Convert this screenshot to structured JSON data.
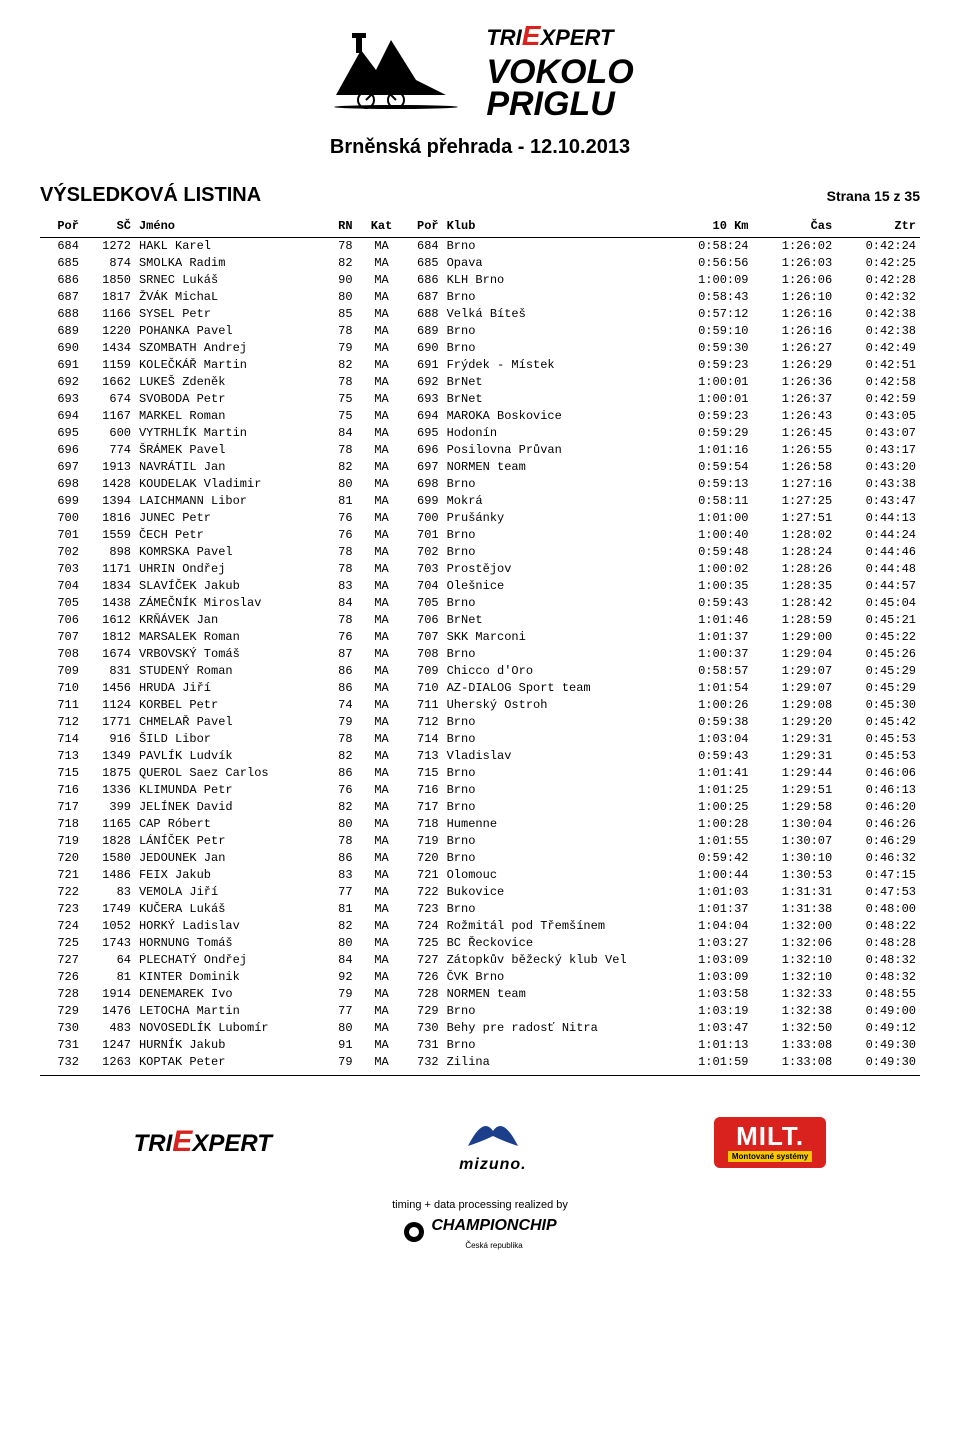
{
  "logo": {
    "tri_prefix": "TRI",
    "tri_e": "E",
    "tri_suffix": "XPERT",
    "line1": "VOKOLO",
    "line2": "PRIGLU"
  },
  "event_title": "Brněnská přehrada - 12.10.2013",
  "list_heading": "VÝSLEDKOVÁ LISTINA",
  "page_info": "Strana 15 z 35",
  "columns": {
    "por": "Poř",
    "sc": "SČ",
    "jmeno": "Jméno",
    "rn": "RN",
    "kat": "Kat",
    "kpor": "Poř",
    "klub": "Klub",
    "k10": "10 Km",
    "cas": "Čas",
    "ztr": "Ztr"
  },
  "rows": [
    [
      "684",
      "1272",
      "HAKL Karel",
      "78",
      "MA",
      "684",
      "Brno",
      "0:58:24",
      "1:26:02",
      "0:42:24"
    ],
    [
      "685",
      "874",
      "SMOLKA Radim",
      "82",
      "MA",
      "685",
      "Opava",
      "0:56:56",
      "1:26:03",
      "0:42:25"
    ],
    [
      "686",
      "1850",
      "SRNEC Lukáš",
      "90",
      "MA",
      "686",
      "KLH Brno",
      "1:00:09",
      "1:26:06",
      "0:42:28"
    ],
    [
      "687",
      "1817",
      "ŽVÁK MichaL",
      "80",
      "MA",
      "687",
      "Brno",
      "0:58:43",
      "1:26:10",
      "0:42:32"
    ],
    [
      "688",
      "1166",
      "SYSEL Petr",
      "85",
      "MA",
      "688",
      "Velká Bíteš",
      "0:57:12",
      "1:26:16",
      "0:42:38"
    ],
    [
      "689",
      "1220",
      "POHANKA Pavel",
      "78",
      "MA",
      "689",
      "Brno",
      "0:59:10",
      "1:26:16",
      "0:42:38"
    ],
    [
      "690",
      "1434",
      "SZOMBATH Andrej",
      "79",
      "MA",
      "690",
      "Brno",
      "0:59:30",
      "1:26:27",
      "0:42:49"
    ],
    [
      "691",
      "1159",
      "KOLEČKÁŘ Martin",
      "82",
      "MA",
      "691",
      "Frýdek - Místek",
      "0:59:23",
      "1:26:29",
      "0:42:51"
    ],
    [
      "692",
      "1662",
      "LUKEŠ Zdeněk",
      "78",
      "MA",
      "692",
      "BrNet",
      "1:00:01",
      "1:26:36",
      "0:42:58"
    ],
    [
      "693",
      "674",
      "SVOBODA Petr",
      "75",
      "MA",
      "693",
      "BrNet",
      "1:00:01",
      "1:26:37",
      "0:42:59"
    ],
    [
      "694",
      "1167",
      "MARKEL Roman",
      "75",
      "MA",
      "694",
      "MAROKA Boskovice",
      "0:59:23",
      "1:26:43",
      "0:43:05"
    ],
    [
      "695",
      "600",
      "VYTRHLÍK Martin",
      "84",
      "MA",
      "695",
      "Hodonín",
      "0:59:29",
      "1:26:45",
      "0:43:07"
    ],
    [
      "696",
      "774",
      "ŠRÁMEK Pavel",
      "78",
      "MA",
      "696",
      "Posilovna Průvan",
      "1:01:16",
      "1:26:55",
      "0:43:17"
    ],
    [
      "697",
      "1913",
      "NAVRÁTIL Jan",
      "82",
      "MA",
      "697",
      "NORMEN team",
      "0:59:54",
      "1:26:58",
      "0:43:20"
    ],
    [
      "698",
      "1428",
      "KOUDELAK Vladimir",
      "80",
      "MA",
      "698",
      "Brno",
      "0:59:13",
      "1:27:16",
      "0:43:38"
    ],
    [
      "699",
      "1394",
      "LAICHMANN Libor",
      "81",
      "MA",
      "699",
      "Mokrá",
      "0:58:11",
      "1:27:25",
      "0:43:47"
    ],
    [
      "700",
      "1816",
      "JUNEC Petr",
      "76",
      "MA",
      "700",
      "Prušánky",
      "1:01:00",
      "1:27:51",
      "0:44:13"
    ],
    [
      "701",
      "1559",
      "ČECH Petr",
      "76",
      "MA",
      "701",
      "Brno",
      "1:00:40",
      "1:28:02",
      "0:44:24"
    ],
    [
      "702",
      "898",
      "KOMRSKA Pavel",
      "78",
      "MA",
      "702",
      "Brno",
      "0:59:48",
      "1:28:24",
      "0:44:46"
    ],
    [
      "703",
      "1171",
      "UHRIN Ondřej",
      "78",
      "MA",
      "703",
      "Prostějov",
      "1:00:02",
      "1:28:26",
      "0:44:48"
    ],
    [
      "704",
      "1834",
      "SLAVÍČEK Jakub",
      "83",
      "MA",
      "704",
      "Olešnice",
      "1:00:35",
      "1:28:35",
      "0:44:57"
    ],
    [
      "705",
      "1438",
      "ZÁMEČNÍK Miroslav",
      "84",
      "MA",
      "705",
      "Brno",
      "0:59:43",
      "1:28:42",
      "0:45:04"
    ],
    [
      "706",
      "1612",
      "KRŇÁVEK Jan",
      "78",
      "MA",
      "706",
      "BrNet",
      "1:01:46",
      "1:28:59",
      "0:45:21"
    ],
    [
      "707",
      "1812",
      "MARSALEK Roman",
      "76",
      "MA",
      "707",
      "SKK Marconi",
      "1:01:37",
      "1:29:00",
      "0:45:22"
    ],
    [
      "708",
      "1674",
      "VRBOVSKÝ Tomáš",
      "87",
      "MA",
      "708",
      "Brno",
      "1:00:37",
      "1:29:04",
      "0:45:26"
    ],
    [
      "709",
      "831",
      "STUDENÝ Roman",
      "86",
      "MA",
      "709",
      "Chicco d'Oro",
      "0:58:57",
      "1:29:07",
      "0:45:29"
    ],
    [
      "710",
      "1456",
      "HRUDA Jiří",
      "86",
      "MA",
      "710",
      "AZ-DIALOG Sport team",
      "1:01:54",
      "1:29:07",
      "0:45:29"
    ],
    [
      "711",
      "1124",
      "KORBEL Petr",
      "74",
      "MA",
      "711",
      "Uherský Ostroh",
      "1:00:26",
      "1:29:08",
      "0:45:30"
    ],
    [
      "712",
      "1771",
      "CHMELAŘ Pavel",
      "79",
      "MA",
      "712",
      "Brno",
      "0:59:38",
      "1:29:20",
      "0:45:42"
    ],
    [
      "714",
      "916",
      "ŠILD Libor",
      "78",
      "MA",
      "714",
      "Brno",
      "1:03:04",
      "1:29:31",
      "0:45:53"
    ],
    [
      "713",
      "1349",
      "PAVLÍK Ludvík",
      "82",
      "MA",
      "713",
      "Vladislav",
      "0:59:43",
      "1:29:31",
      "0:45:53"
    ],
    [
      "715",
      "1875",
      "QUEROL Saez Carlos",
      "86",
      "MA",
      "715",
      "Brno",
      "1:01:41",
      "1:29:44",
      "0:46:06"
    ],
    [
      "716",
      "1336",
      "KLIMUNDA Petr",
      "76",
      "MA",
      "716",
      "Brno",
      "1:01:25",
      "1:29:51",
      "0:46:13"
    ],
    [
      "717",
      "399",
      "JELÍNEK David",
      "82",
      "MA",
      "717",
      "Brno",
      "1:00:25",
      "1:29:58",
      "0:46:20"
    ],
    [
      "718",
      "1165",
      "CAP Róbert",
      "80",
      "MA",
      "718",
      "Humenne",
      "1:00:28",
      "1:30:04",
      "0:46:26"
    ],
    [
      "719",
      "1828",
      "LÁNÍČEK Petr",
      "78",
      "MA",
      "719",
      "Brno",
      "1:01:55",
      "1:30:07",
      "0:46:29"
    ],
    [
      "720",
      "1580",
      "JEDOUNEK Jan",
      "86",
      "MA",
      "720",
      "Brno",
      "0:59:42",
      "1:30:10",
      "0:46:32"
    ],
    [
      "721",
      "1486",
      "FEIX Jakub",
      "83",
      "MA",
      "721",
      "Olomouc",
      "1:00:44",
      "1:30:53",
      "0:47:15"
    ],
    [
      "722",
      "83",
      "VEMOLA Jiří",
      "77",
      "MA",
      "722",
      "Bukovice",
      "1:01:03",
      "1:31:31",
      "0:47:53"
    ],
    [
      "723",
      "1749",
      "KUČERA Lukáš",
      "81",
      "MA",
      "723",
      "Brno",
      "1:01:37",
      "1:31:38",
      "0:48:00"
    ],
    [
      "724",
      "1052",
      "HORKÝ Ladislav",
      "82",
      "MA",
      "724",
      "Rožmitál pod Třemšínem",
      "1:04:04",
      "1:32:00",
      "0:48:22"
    ],
    [
      "725",
      "1743",
      "HORNUNG Tomáš",
      "80",
      "MA",
      "725",
      "BC Řeckovice",
      "1:03:27",
      "1:32:06",
      "0:48:28"
    ],
    [
      "727",
      "64",
      "PLECHATÝ Ondřej",
      "84",
      "MA",
      "727",
      "Zátopkův běžecký klub Vel",
      "1:03:09",
      "1:32:10",
      "0:48:32"
    ],
    [
      "726",
      "81",
      "KINTER Dominik",
      "92",
      "MA",
      "726",
      "ČVK Brno",
      "1:03:09",
      "1:32:10",
      "0:48:32"
    ],
    [
      "728",
      "1914",
      "DENEMAREK Ivo",
      "79",
      "MA",
      "728",
      "NORMEN team",
      "1:03:58",
      "1:32:33",
      "0:48:55"
    ],
    [
      "729",
      "1476",
      "LETOCHA Martin",
      "77",
      "MA",
      "729",
      "Brno",
      "1:03:19",
      "1:32:38",
      "0:49:00"
    ],
    [
      "730",
      "483",
      "NOVOSEDLÍK Lubomír",
      "80",
      "MA",
      "730",
      "Behy pre radosť Nitra",
      "1:03:47",
      "1:32:50",
      "0:49:12"
    ],
    [
      "731",
      "1247",
      "HURNÍK Jakub",
      "91",
      "MA",
      "731",
      "Brno",
      "1:01:13",
      "1:33:08",
      "0:49:30"
    ],
    [
      "732",
      "1263",
      "KOPTAK Peter",
      "79",
      "MA",
      "732",
      "Zilina",
      "1:01:59",
      "1:33:08",
      "0:49:30"
    ]
  ],
  "footer": {
    "tri_prefix": "TRI",
    "tri_e": "E",
    "tri_suffix": "XPERT",
    "mizuno": "mizuno.",
    "milt": "MILT.",
    "milt_sub": "Montované systémy",
    "timing": "timing + data processing realized by",
    "champion": "CHAMPIONCHIP",
    "champion_sub": "Česká republika"
  },
  "colors": {
    "red": "#d9221d",
    "blue": "#1c3f8b",
    "yellow": "#f9c700",
    "black": "#000000",
    "white": "#ffffff"
  }
}
